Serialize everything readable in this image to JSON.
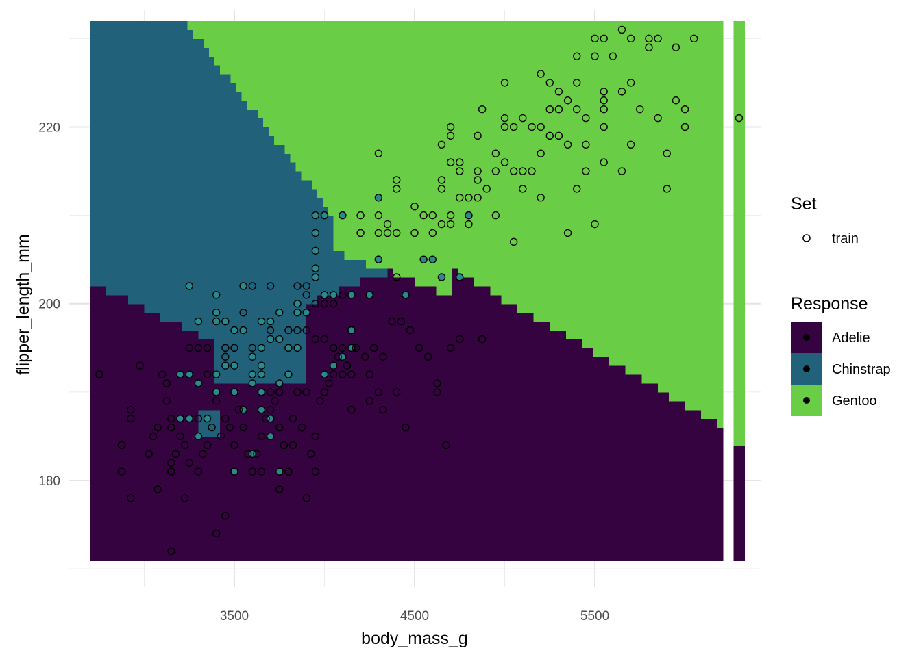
{
  "chart_data": {
    "type": "scatter",
    "title": "",
    "xlabel": "body_mass_g",
    "ylabel": "flipper_length_mm",
    "xlim": [
      2580,
      6420
    ],
    "ylim": [
      168,
      233.2
    ],
    "x_ticks": [
      3500,
      4500,
      5500
    ],
    "y_ticks": [
      180,
      200,
      220
    ],
    "x_minor_gridlines": [
      3000,
      4000,
      5000,
      6000
    ],
    "y_minor_gridlines": [
      170,
      190,
      210,
      230
    ],
    "grid": true,
    "legend_placement": "right",
    "colors": {
      "Adelie": "#35033f",
      "Chinstrap": "#21627a",
      "Gentoo": "#6acd46"
    },
    "background_regions": {
      "description_units": "data",
      "x_range": [
        2700,
        6310
      ],
      "y_range": [
        171,
        231.5
      ],
      "classes": [
        "Adelie",
        "Chinstrap",
        "Gentoo"
      ]
    },
    "legends": [
      {
        "title": "Set",
        "entries": [
          {
            "label": "train",
            "shape": "open-circle"
          }
        ]
      },
      {
        "title": "Response",
        "entries": [
          {
            "label": "Adelie",
            "color": "#35033f"
          },
          {
            "label": "Chinstrap",
            "color": "#21627a"
          },
          {
            "label": "Gentoo",
            "color": "#6acd46"
          }
        ]
      }
    ],
    "series": [
      {
        "name": "Gentoo",
        "points": [
          [
            4875,
            222
          ],
          [
            5000,
            221
          ],
          [
            5000,
            220
          ],
          [
            5050,
            220
          ],
          [
            5100,
            221
          ],
          [
            5150,
            220
          ],
          [
            5200,
            220
          ],
          [
            5250,
            222
          ],
          [
            5300,
            222
          ],
          [
            5350,
            223
          ],
          [
            5400,
            222
          ],
          [
            5450,
            221
          ],
          [
            5550,
            223
          ],
          [
            5550,
            222
          ],
          [
            5550,
            220
          ],
          [
            5650,
            224
          ],
          [
            5700,
            225
          ],
          [
            5750,
            222
          ],
          [
            5850,
            221
          ],
          [
            5950,
            223
          ],
          [
            6000,
            222
          ],
          [
            6000,
            220
          ],
          [
            5000,
            225
          ],
          [
            5200,
            226
          ],
          [
            5250,
            225
          ],
          [
            5300,
            224
          ],
          [
            5400,
            225
          ],
          [
            5550,
            224
          ],
          [
            5400,
            228
          ],
          [
            5500,
            228
          ],
          [
            5600,
            228
          ],
          [
            5500,
            230
          ],
          [
            5550,
            230
          ],
          [
            5650,
            231
          ],
          [
            5700,
            230
          ],
          [
            5800,
            230
          ],
          [
            5850,
            230
          ],
          [
            5800,
            229
          ],
          [
            5950,
            229
          ],
          [
            6050,
            230
          ],
          [
            6300,
            221
          ],
          [
            4700,
            220
          ],
          [
            4700,
            219
          ],
          [
            4650,
            218
          ],
          [
            4750,
            216
          ],
          [
            4850,
            219
          ],
          [
            4950,
            217
          ],
          [
            5000,
            216
          ],
          [
            4950,
            215
          ],
          [
            5050,
            215
          ],
          [
            5100,
            215
          ],
          [
            5150,
            215
          ],
          [
            5200,
            217
          ],
          [
            5250,
            219
          ],
          [
            5300,
            219
          ],
          [
            5350,
            218
          ],
          [
            5450,
            218
          ],
          [
            5450,
            215
          ],
          [
            5550,
            216
          ],
          [
            5650,
            215
          ],
          [
            5700,
            218
          ],
          [
            5900,
            217
          ],
          [
            5400,
            213
          ],
          [
            5200,
            212
          ],
          [
            5100,
            213
          ],
          [
            4400,
            214
          ],
          [
            4400,
            213
          ],
          [
            4300,
            217
          ],
          [
            4700,
            216
          ],
          [
            4750,
            215
          ],
          [
            4850,
            215
          ],
          [
            4850,
            214
          ],
          [
            4900,
            213
          ],
          [
            4650,
            214
          ],
          [
            4650,
            213
          ],
          [
            4750,
            212
          ],
          [
            4800,
            212
          ],
          [
            4850,
            212
          ],
          [
            4700,
            210
          ],
          [
            4600,
            210
          ],
          [
            4500,
            211
          ],
          [
            4550,
            210
          ],
          [
            4300,
            210
          ],
          [
            4350,
            209
          ],
          [
            4200,
            210
          ],
          [
            4100,
            210
          ],
          [
            4200,
            208
          ],
          [
            4300,
            208
          ],
          [
            4350,
            208
          ],
          [
            4400,
            208
          ],
          [
            4500,
            208
          ],
          [
            4600,
            208
          ],
          [
            4650,
            209
          ],
          [
            4700,
            209
          ],
          [
            4800,
            210
          ],
          [
            4800,
            209
          ],
          [
            4950,
            210
          ],
          [
            5050,
            207
          ],
          [
            5350,
            208
          ],
          [
            5500,
            209
          ],
          [
            5900,
            213
          ]
        ]
      },
      {
        "name": "Chinstrap",
        "points": [
          [
            3950,
            210
          ],
          [
            4000,
            210
          ],
          [
            4100,
            210
          ],
          [
            3950,
            208
          ],
          [
            3950,
            206
          ],
          [
            3950,
            204
          ],
          [
            4000,
            201
          ],
          [
            4050,
            201
          ],
          [
            4150,
            201
          ],
          [
            4300,
            205
          ],
          [
            4300,
            212
          ],
          [
            4800,
            210
          ],
          [
            4650,
            203
          ],
          [
            4750,
            203
          ],
          [
            4550,
            205
          ],
          [
            4600,
            205
          ],
          [
            4450,
            201
          ],
          [
            4250,
            201
          ],
          [
            3550,
            202
          ],
          [
            3550,
            202
          ],
          [
            3250,
            202
          ],
          [
            3400,
            201
          ],
          [
            3400,
            199
          ],
          [
            3300,
            198
          ],
          [
            3400,
            198
          ],
          [
            3500,
            197
          ],
          [
            3550,
            197
          ],
          [
            3650,
            198
          ],
          [
            3700,
            198
          ],
          [
            3750,
            199
          ],
          [
            3850,
            199
          ],
          [
            3900,
            199
          ],
          [
            3750,
            196
          ],
          [
            3700,
            196
          ],
          [
            3650,
            195
          ],
          [
            3800,
            195
          ],
          [
            3850,
            195
          ],
          [
            3600,
            194
          ],
          [
            3500,
            193
          ],
          [
            3450,
            193
          ],
          [
            3400,
            192
          ],
          [
            3600,
            192
          ],
          [
            3650,
            192
          ],
          [
            3750,
            191
          ],
          [
            3800,
            192
          ],
          [
            3300,
            191
          ],
          [
            3200,
            192
          ],
          [
            3250,
            192
          ],
          [
            3650,
            190
          ],
          [
            3500,
            190
          ],
          [
            3400,
            190
          ],
          [
            3550,
            188
          ],
          [
            3650,
            188
          ],
          [
            3700,
            187
          ],
          [
            3350,
            187
          ],
          [
            3250,
            187
          ],
          [
            3200,
            187
          ],
          [
            3600,
            183
          ],
          [
            3500,
            181
          ],
          [
            3750,
            181
          ],
          [
            3300,
            185
          ],
          [
            3700,
            185
          ],
          [
            4150,
            197
          ],
          [
            4150,
            195
          ],
          [
            4100,
            194
          ],
          [
            4050,
            193
          ],
          [
            4000,
            192
          ],
          [
            3650,
            193
          ],
          [
            3600,
            191
          ],
          [
            3450,
            198
          ],
          [
            3850,
            200
          ],
          [
            3950,
            203
          ]
        ]
      },
      {
        "name": "Adelie",
        "points": [
          [
            2750,
            192
          ],
          [
            2925,
            188
          ],
          [
            2925,
            187
          ],
          [
            2975,
            193
          ],
          [
            3050,
            185
          ],
          [
            3075,
            186
          ],
          [
            3100,
            192
          ],
          [
            3125,
            191
          ],
          [
            3125,
            189
          ],
          [
            3150,
            186
          ],
          [
            3175,
            183
          ],
          [
            3200,
            185
          ],
          [
            3250,
            182
          ],
          [
            3225,
            184
          ],
          [
            3300,
            181
          ],
          [
            3325,
            183
          ],
          [
            3350,
            184
          ],
          [
            3375,
            186
          ],
          [
            3400,
            189
          ],
          [
            3425,
            185
          ],
          [
            3450,
            187
          ],
          [
            3475,
            186
          ],
          [
            3500,
            184
          ],
          [
            3525,
            188
          ],
          [
            3550,
            186
          ],
          [
            3575,
            183
          ],
          [
            3600,
            181
          ],
          [
            3625,
            183
          ],
          [
            3650,
            185
          ],
          [
            3675,
            187
          ],
          [
            3700,
            188
          ],
          [
            3725,
            189
          ],
          [
            3750,
            186
          ],
          [
            3775,
            184
          ],
          [
            3800,
            181
          ],
          [
            3825,
            187
          ],
          [
            3850,
            190
          ],
          [
            3875,
            186
          ],
          [
            3900,
            178
          ],
          [
            3925,
            183
          ],
          [
            3950,
            181
          ],
          [
            3975,
            189
          ],
          [
            4000,
            190
          ],
          [
            4025,
            191
          ],
          [
            4050,
            192
          ],
          [
            4075,
            194
          ],
          [
            4100,
            195
          ],
          [
            4125,
            193
          ],
          [
            4175,
            195
          ],
          [
            4225,
            194
          ],
          [
            4275,
            195
          ],
          [
            4325,
            194
          ],
          [
            4375,
            198
          ],
          [
            4425,
            198
          ],
          [
            4475,
            197
          ],
          [
            4525,
            195
          ],
          [
            4575,
            194
          ],
          [
            4625,
            191
          ],
          [
            4625,
            190
          ],
          [
            4675,
            184
          ],
          [
            4700,
            195
          ],
          [
            4750,
            196
          ],
          [
            4875,
            196
          ],
          [
            4450,
            186
          ],
          [
            4325,
            188
          ],
          [
            4150,
            188
          ],
          [
            2875,
            184
          ],
          [
            2875,
            181
          ],
          [
            2925,
            178
          ],
          [
            3025,
            183
          ],
          [
            3075,
            179
          ],
          [
            3150,
            182
          ],
          [
            3150,
            181
          ],
          [
            3150,
            172
          ],
          [
            3225,
            178
          ],
          [
            3400,
            174
          ],
          [
            3450,
            176
          ],
          [
            3750,
            179
          ],
          [
            3650,
            181
          ],
          [
            3825,
            184
          ],
          [
            3950,
            185
          ],
          [
            3300,
            187
          ],
          [
            3350,
            192
          ],
          [
            3450,
            195
          ],
          [
            3600,
            195
          ],
          [
            3300,
            195
          ],
          [
            3250,
            195
          ],
          [
            3350,
            195
          ],
          [
            3500,
            195
          ],
          [
            3550,
            199
          ],
          [
            3700,
            197
          ],
          [
            3800,
            197
          ],
          [
            3850,
            197
          ],
          [
            3900,
            197
          ],
          [
            3950,
            196
          ],
          [
            4000,
            196
          ],
          [
            4050,
            195
          ],
          [
            3450,
            194
          ],
          [
            3650,
            190
          ],
          [
            3700,
            190
          ],
          [
            3750,
            190
          ],
          [
            3900,
            190
          ],
          [
            4000,
            190
          ],
          [
            4100,
            192
          ],
          [
            4150,
            192
          ],
          [
            4250,
            192
          ],
          [
            4250,
            189
          ],
          [
            4300,
            190
          ],
          [
            4400,
            190
          ],
          [
            3150,
            187
          ],
          [
            3200,
            187
          ],
          [
            2750,
            192
          ],
          [
            3900,
            201
          ],
          [
            3950,
            200
          ],
          [
            4050,
            200
          ],
          [
            4000,
            200
          ],
          [
            4100,
            201
          ],
          [
            3600,
            202
          ],
          [
            3850,
            202
          ],
          [
            3900,
            202
          ],
          [
            3700,
            202
          ],
          [
            4000,
            210
          ],
          [
            4300,
            205
          ],
          [
            4400,
            203
          ]
        ]
      }
    ]
  }
}
